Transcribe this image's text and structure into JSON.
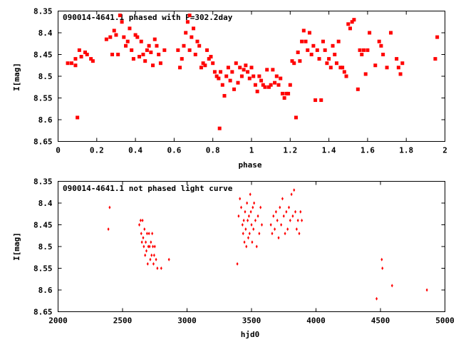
{
  "chart_data": [
    {
      "type": "scatter",
      "title": "090014-4641.1 phased with P=302.2day",
      "xlabel": "phase",
      "ylabel": "I[mag]",
      "xlim": [
        0,
        2
      ],
      "ylim": [
        8.35,
        8.65
      ],
      "y_inverted": true,
      "x_ticks": [
        0,
        0.2,
        0.4,
        0.6,
        0.8,
        1,
        1.2,
        1.4,
        1.6,
        1.8,
        2
      ],
      "x_tick_labels": [
        "0",
        "0.2",
        "0.4",
        "0.6",
        "0.8",
        "1",
        "1.2",
        "1.4",
        "1.6",
        "1.8",
        "2"
      ],
      "y_ticks": [
        8.35,
        8.4,
        8.45,
        8.5,
        8.55,
        8.6,
        8.65
      ],
      "y_tick_labels": [
        "8.35",
        "8.4",
        "8.45",
        "8.5",
        "8.55",
        "8.6",
        "8.65"
      ],
      "grid": false,
      "marker_color": "#ff0000",
      "points": [
        [
          0.05,
          8.47
        ],
        [
          0.07,
          8.47
        ],
        [
          0.09,
          8.475
        ],
        [
          0.09,
          8.46
        ],
        [
          0.1,
          8.595
        ],
        [
          0.11,
          8.44
        ],
        [
          0.12,
          8.455
        ],
        [
          0.14,
          8.445
        ],
        [
          0.15,
          8.45
        ],
        [
          0.17,
          8.46
        ],
        [
          0.18,
          8.465
        ],
        [
          0.25,
          8.415
        ],
        [
          0.27,
          8.41
        ],
        [
          0.28,
          8.45
        ],
        [
          0.29,
          8.395
        ],
        [
          0.3,
          8.405
        ],
        [
          0.31,
          8.45
        ],
        [
          0.32,
          8.36
        ],
        [
          0.33,
          8.375
        ],
        [
          0.34,
          8.41
        ],
        [
          0.35,
          8.43
        ],
        [
          0.36,
          8.42
        ],
        [
          0.37,
          8.39
        ],
        [
          0.38,
          8.44
        ],
        [
          0.39,
          8.46
        ],
        [
          0.4,
          8.405
        ],
        [
          0.41,
          8.41
        ],
        [
          0.42,
          8.455
        ],
        [
          0.43,
          8.42
        ],
        [
          0.44,
          8.45
        ],
        [
          0.45,
          8.465
        ],
        [
          0.46,
          8.44
        ],
        [
          0.47,
          8.43
        ],
        [
          0.48,
          8.445
        ],
        [
          0.49,
          8.475
        ],
        [
          0.5,
          8.415
        ],
        [
          0.51,
          8.43
        ],
        [
          0.52,
          8.45
        ],
        [
          0.53,
          8.47
        ],
        [
          0.55,
          8.44
        ],
        [
          0.62,
          8.44
        ],
        [
          0.63,
          8.48
        ],
        [
          0.64,
          8.46
        ],
        [
          0.65,
          8.43
        ],
        [
          0.66,
          8.4
        ],
        [
          0.67,
          8.375
        ],
        [
          0.68,
          8.44
        ],
        [
          0.68,
          8.36
        ],
        [
          0.69,
          8.41
        ],
        [
          0.7,
          8.39
        ],
        [
          0.71,
          8.45
        ],
        [
          0.72,
          8.42
        ],
        [
          0.73,
          8.43
        ],
        [
          0.74,
          8.48
        ],
        [
          0.75,
          8.47
        ],
        [
          0.76,
          8.475
        ],
        [
          0.77,
          8.44
        ],
        [
          0.78,
          8.46
        ],
        [
          0.79,
          8.455
        ],
        [
          0.8,
          8.47
        ],
        [
          0.81,
          8.49
        ],
        [
          0.82,
          8.5
        ],
        [
          0.83,
          8.505
        ],
        [
          0.835,
          8.62
        ],
        [
          0.84,
          8.49
        ],
        [
          0.85,
          8.52
        ],
        [
          0.86,
          8.545
        ],
        [
          0.87,
          8.5
        ],
        [
          0.88,
          8.48
        ],
        [
          0.89,
          8.51
        ],
        [
          0.9,
          8.49
        ],
        [
          0.91,
          8.53
        ],
        [
          0.92,
          8.47
        ],
        [
          0.93,
          8.515
        ],
        [
          0.94,
          8.48
        ],
        [
          0.95,
          8.5
        ],
        [
          0.96,
          8.485
        ],
        [
          0.97,
          8.475
        ],
        [
          0.98,
          8.49
        ],
        [
          0.99,
          8.505
        ],
        [
          1.0,
          8.48
        ],
        [
          1.01,
          8.5
        ],
        [
          1.02,
          8.52
        ],
        [
          1.03,
          8.535
        ],
        [
          1.04,
          8.5
        ],
        [
          1.05,
          8.51
        ],
        [
          1.06,
          8.52
        ],
        [
          1.07,
          8.525
        ],
        [
          1.08,
          8.485
        ],
        [
          1.09,
          8.525
        ],
        [
          1.1,
          8.52
        ],
        [
          1.11,
          8.485
        ],
        [
          1.12,
          8.515
        ],
        [
          1.13,
          8.5
        ],
        [
          1.14,
          8.52
        ],
        [
          1.15,
          8.505
        ],
        [
          1.16,
          8.54
        ],
        [
          1.17,
          8.55
        ],
        [
          1.18,
          8.54
        ],
        [
          1.19,
          8.54
        ],
        [
          1.2,
          8.52
        ],
        [
          1.21,
          8.465
        ],
        [
          1.22,
          8.47
        ],
        [
          1.23,
          8.595
        ],
        [
          1.24,
          8.445
        ],
        [
          1.25,
          8.465
        ],
        [
          1.26,
          8.42
        ],
        [
          1.27,
          8.395
        ],
        [
          1.28,
          8.42
        ],
        [
          1.29,
          8.44
        ],
        [
          1.3,
          8.4
        ],
        [
          1.31,
          8.45
        ],
        [
          1.32,
          8.43
        ],
        [
          1.33,
          8.555
        ],
        [
          1.34,
          8.44
        ],
        [
          1.35,
          8.46
        ],
        [
          1.36,
          8.555
        ],
        [
          1.37,
          8.42
        ],
        [
          1.38,
          8.44
        ],
        [
          1.39,
          8.47
        ],
        [
          1.4,
          8.46
        ],
        [
          1.41,
          8.48
        ],
        [
          1.42,
          8.43
        ],
        [
          1.43,
          8.45
        ],
        [
          1.44,
          8.47
        ],
        [
          1.45,
          8.42
        ],
        [
          1.46,
          8.48
        ],
        [
          1.47,
          8.48
        ],
        [
          1.48,
          8.49
        ],
        [
          1.49,
          8.5
        ],
        [
          1.5,
          8.38
        ],
        [
          1.51,
          8.39
        ],
        [
          1.52,
          8.375
        ],
        [
          1.53,
          8.37
        ],
        [
          1.55,
          8.53
        ],
        [
          1.56,
          8.44
        ],
        [
          1.57,
          8.45
        ],
        [
          1.58,
          8.44
        ],
        [
          1.59,
          8.495
        ],
        [
          1.6,
          8.44
        ],
        [
          1.61,
          8.4
        ],
        [
          1.64,
          8.475
        ],
        [
          1.66,
          8.42
        ],
        [
          1.67,
          8.43
        ],
        [
          1.68,
          8.45
        ],
        [
          1.7,
          8.48
        ],
        [
          1.72,
          8.4
        ],
        [
          1.75,
          8.46
        ],
        [
          1.76,
          8.48
        ],
        [
          1.77,
          8.495
        ],
        [
          1.78,
          8.47
        ],
        [
          1.96,
          8.41
        ],
        [
          1.95,
          8.46
        ]
      ]
    },
    {
      "type": "scatter",
      "title": "090014-4641.1 not phased light curve",
      "xlabel": "hjd0",
      "ylabel": "I[mag]",
      "xlim": [
        2000,
        5000
      ],
      "ylim": [
        8.35,
        8.65
      ],
      "y_inverted": true,
      "x_ticks": [
        2000,
        2500,
        3000,
        3500,
        4000,
        4500,
        5000
      ],
      "x_tick_labels": [
        "2000",
        "2500",
        "3000",
        "3500",
        "4000",
        "4500",
        "5000"
      ],
      "y_ticks": [
        8.35,
        8.4,
        8.45,
        8.5,
        8.55,
        8.6,
        8.65
      ],
      "y_tick_labels": [
        "8.35",
        "8.4",
        "8.45",
        "8.5",
        "8.55",
        "8.6",
        "8.65"
      ],
      "grid": false,
      "marker_color": "#ff0000",
      "points": [
        [
          2390,
          8.46
        ],
        [
          2400,
          8.41
        ],
        [
          2630,
          8.45
        ],
        [
          2640,
          8.44
        ],
        [
          2645,
          8.47
        ],
        [
          2650,
          8.49
        ],
        [
          2655,
          8.44
        ],
        [
          2660,
          8.48
        ],
        [
          2665,
          8.5
        ],
        [
          2670,
          8.46
        ],
        [
          2675,
          8.52
        ],
        [
          2680,
          8.49
        ],
        [
          2685,
          8.51
        ],
        [
          2690,
          8.47
        ],
        [
          2695,
          8.54
        ],
        [
          2700,
          8.5
        ],
        [
          2705,
          8.47
        ],
        [
          2710,
          8.5
        ],
        [
          2715,
          8.53
        ],
        [
          2720,
          8.49
        ],
        [
          2725,
          8.52
        ],
        [
          2730,
          8.47
        ],
        [
          2735,
          8.5
        ],
        [
          2740,
          8.54
        ],
        [
          2745,
          8.52
        ],
        [
          2750,
          8.5
        ],
        [
          2760,
          8.53
        ],
        [
          2770,
          8.55
        ],
        [
          2800,
          8.55
        ],
        [
          2860,
          8.53
        ],
        [
          3390,
          8.54
        ],
        [
          3400,
          8.43
        ],
        [
          3410,
          8.39
        ],
        [
          3420,
          8.41
        ],
        [
          3430,
          8.45
        ],
        [
          3435,
          8.47
        ],
        [
          3440,
          8.44
        ],
        [
          3445,
          8.49
        ],
        [
          3450,
          8.42
        ],
        [
          3455,
          8.46
        ],
        [
          3460,
          8.5
        ],
        [
          3465,
          8.4
        ],
        [
          3470,
          8.44
        ],
        [
          3475,
          8.48
        ],
        [
          3480,
          8.43
        ],
        [
          3485,
          8.47
        ],
        [
          3490,
          8.38
        ],
        [
          3495,
          8.42
        ],
        [
          3500,
          8.45
        ],
        [
          3505,
          8.49
        ],
        [
          3510,
          8.41
        ],
        [
          3515,
          8.46
        ],
        [
          3520,
          8.4
        ],
        [
          3530,
          8.44
        ],
        [
          3540,
          8.5
        ],
        [
          3550,
          8.43
        ],
        [
          3560,
          8.47
        ],
        [
          3570,
          8.41
        ],
        [
          3580,
          8.45
        ],
        [
          3650,
          8.45
        ],
        [
          3660,
          8.47
        ],
        [
          3670,
          8.43
        ],
        [
          3680,
          8.46
        ],
        [
          3690,
          8.42
        ],
        [
          3700,
          8.44
        ],
        [
          3710,
          8.48
        ],
        [
          3720,
          8.41
        ],
        [
          3730,
          8.45
        ],
        [
          3740,
          8.39
        ],
        [
          3750,
          8.43
        ],
        [
          3760,
          8.47
        ],
        [
          3770,
          8.42
        ],
        [
          3780,
          8.46
        ],
        [
          3790,
          8.41
        ],
        [
          3800,
          8.44
        ],
        [
          3810,
          8.38
        ],
        [
          3820,
          8.43
        ],
        [
          3830,
          8.37
        ],
        [
          3840,
          8.42
        ],
        [
          3850,
          8.46
        ],
        [
          3860,
          8.44
        ],
        [
          3870,
          8.47
        ],
        [
          3880,
          8.42
        ],
        [
          3890,
          8.44
        ],
        [
          4470,
          8.62
        ],
        [
          4510,
          8.53
        ],
        [
          4515,
          8.55
        ],
        [
          4590,
          8.59
        ],
        [
          4860,
          8.6
        ]
      ]
    }
  ]
}
